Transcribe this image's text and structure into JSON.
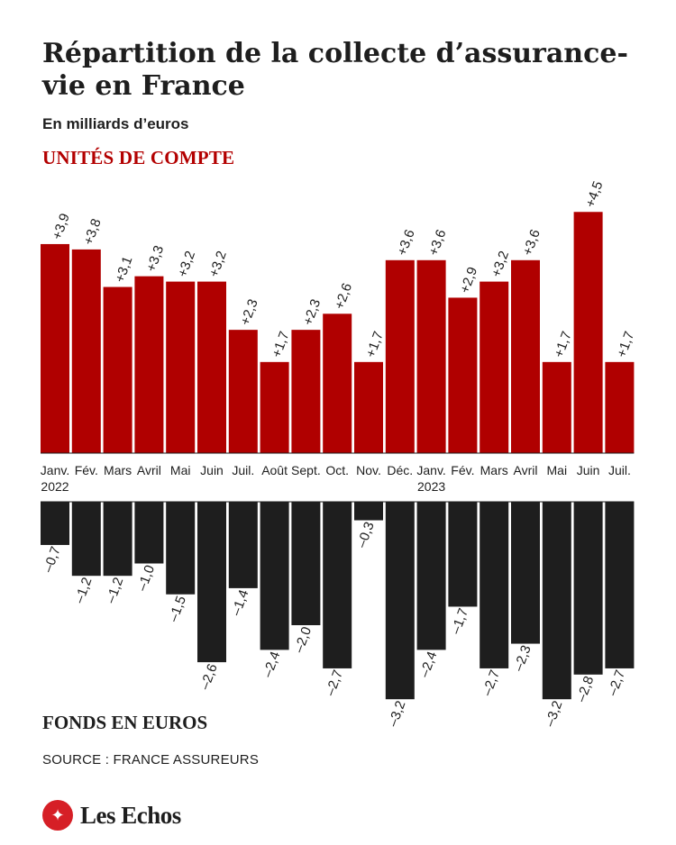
{
  "title": "Répartition de la collecte d’assurance-vie en France",
  "subtitle": "En milliards d’euros",
  "source": "SOURCE : FRANCE ASSUREURS",
  "brand": "Les Echos",
  "colors": {
    "positive": "#b00000",
    "negative": "#1e1e1e",
    "brand": "#d61f26"
  },
  "chart_data": {
    "type": "bar",
    "categories": [
      "Janv.",
      "Fév.",
      "Mars",
      "Avril",
      "Mai",
      "Juin",
      "Juil.",
      "Août",
      "Sept.",
      "Oct.",
      "Nov.",
      "Déc.",
      "Janv.",
      "Fév.",
      "Mars",
      "Avril",
      "Mai",
      "Juin",
      "Juil."
    ],
    "year_labels": [
      {
        "index": 0,
        "label": "2022"
      },
      {
        "index": 12,
        "label": "2023"
      }
    ],
    "series": [
      {
        "name": "UNITÉS DE COMPTE",
        "values": [
          3.9,
          3.8,
          3.1,
          3.3,
          3.2,
          3.2,
          2.3,
          1.7,
          2.3,
          2.6,
          1.7,
          3.6,
          3.6,
          2.9,
          3.2,
          3.6,
          1.7,
          4.5,
          1.7
        ],
        "labels": [
          "+3,9",
          "+3,8",
          "+3,1",
          "+3,3",
          "+3,2",
          "+3,2",
          "+2,3",
          "+1,7",
          "+2,3",
          "+2,6",
          "+1,7",
          "+3,6",
          "+3,6",
          "+2,9",
          "+3,2",
          "+3,6",
          "+1,7",
          "+4,5",
          "+1,7"
        ]
      },
      {
        "name": "FONDS EN EUROS",
        "values": [
          -0.7,
          -1.2,
          -1.2,
          -1.0,
          -1.5,
          -2.6,
          -1.4,
          -2.4,
          -2.0,
          -2.7,
          -0.3,
          -3.2,
          -2.4,
          -1.7,
          -2.7,
          -2.3,
          -3.2,
          -2.8,
          -2.7
        ],
        "labels": [
          "–0,7",
          "–1,2",
          "–1,2",
          "–1,0",
          "–1,5",
          "–2,6",
          "–1,4",
          "–2,4",
          "–2,0",
          "–2,7",
          "–0,3",
          "–3,2",
          "–2,4",
          "–1,7",
          "–2,7",
          "–2,3",
          "–3,2",
          "–2,8",
          "–2,7"
        ]
      }
    ]
  }
}
